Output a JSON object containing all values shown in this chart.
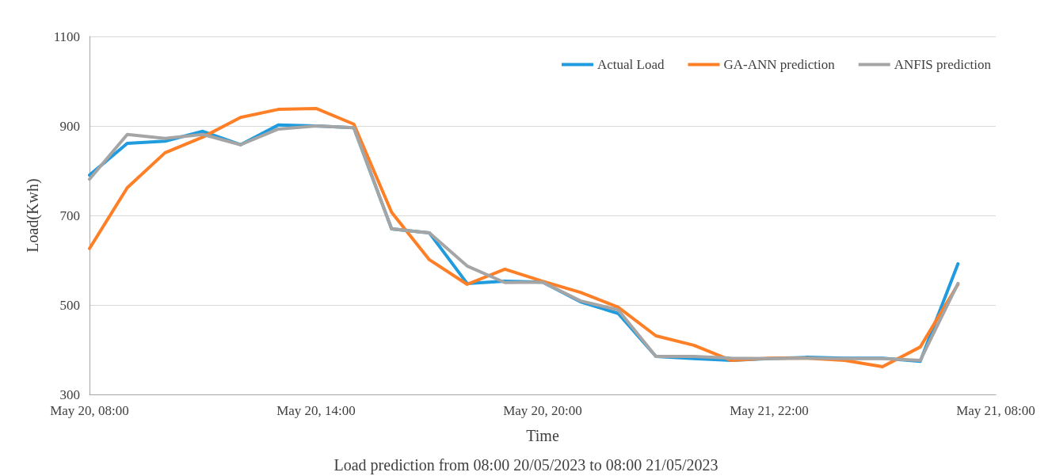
{
  "chart_data": {
    "type": "line",
    "xlabel": "Time",
    "ylabel": "Load(Kwh)",
    "annotations": [
      "Load prediction from 08:00 20/05/2023 to 08:00 21/05/2023"
    ],
    "categories": [
      "May 20, 08:00",
      null,
      null,
      null,
      null,
      null,
      "May 20, 14:00",
      null,
      null,
      null,
      null,
      null,
      "May 20, 20:00",
      null,
      null,
      null,
      null,
      null,
      "May 21, 22:00",
      null,
      null,
      null,
      null,
      null,
      "May 21, 08:00"
    ],
    "ylim": [
      300,
      1100
    ],
    "yticks": [
      300,
      500,
      700,
      900,
      1100
    ],
    "grid": "y",
    "legend": "top right",
    "marker": "none",
    "line_style": "solid",
    "series": [
      {
        "name": "Actual Load",
        "color": "#1f9bde",
        "values": [
          790,
          861,
          866,
          888,
          858,
          902,
          900,
          896,
          670,
          661,
          548,
          553,
          551,
          507,
          481,
          385,
          380,
          376,
          380,
          383,
          381,
          381,
          374,
          592,
          null
        ]
      },
      {
        "name": "GA-ANN prediction",
        "color": "#ff7f27",
        "values": [
          626,
          762,
          840,
          875,
          919,
          937,
          939,
          904,
          707,
          601,
          546,
          580,
          553,
          528,
          495,
          431,
          410,
          376,
          381,
          381,
          376,
          362,
          406,
          546,
          null
        ]
      },
      {
        "name": "ANFIS prediction",
        "color": "#a5a5a5",
        "values": [
          781,
          881,
          872,
          881,
          858,
          893,
          900,
          896,
          670,
          661,
          587,
          550,
          551,
          509,
          489,
          385,
          385,
          381,
          380,
          381,
          380,
          380,
          376,
          548,
          null
        ]
      }
    ]
  }
}
